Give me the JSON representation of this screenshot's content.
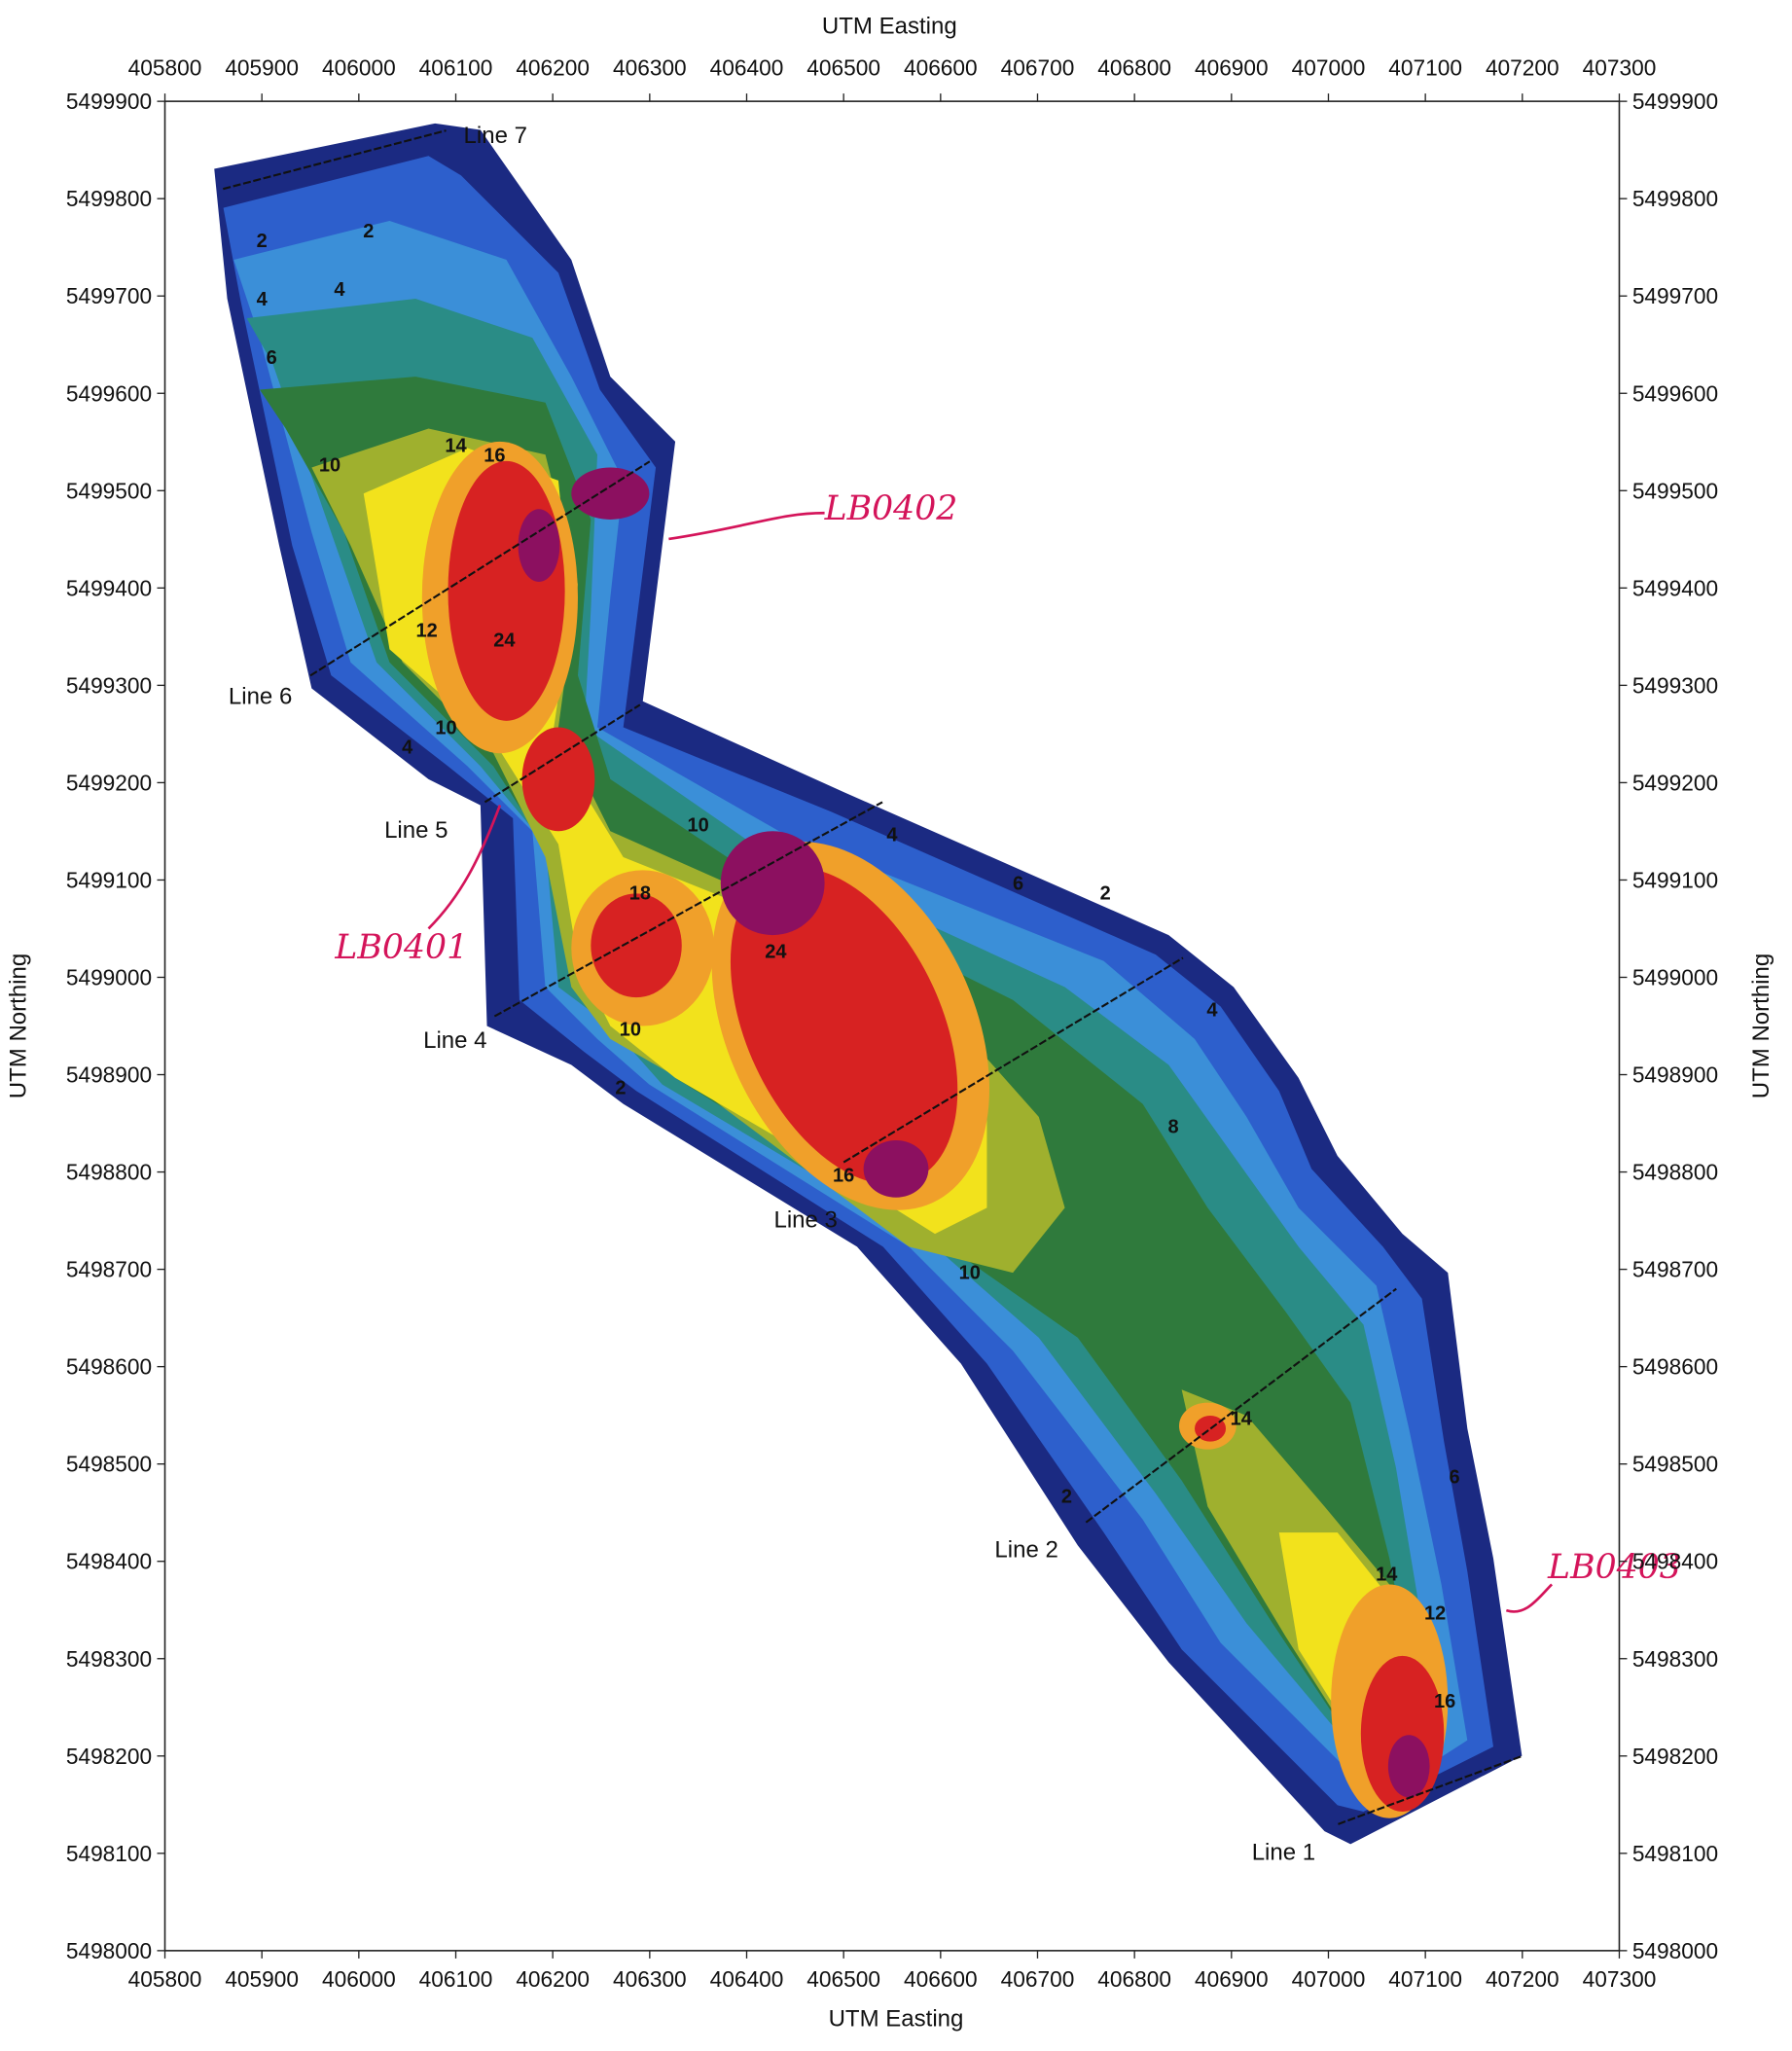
{
  "chart_data": {
    "type": "contour",
    "x_label": "UTM Easting",
    "y_label": "UTM Northing",
    "xlim": [
      405800,
      407300
    ],
    "ylim": [
      5498000,
      5499900
    ],
    "xticks": [
      405800,
      405900,
      406000,
      406100,
      406200,
      406300,
      406400,
      406500,
      406600,
      406700,
      406800,
      406900,
      407000,
      407100,
      407200,
      407300
    ],
    "yticks": [
      5498000,
      5498100,
      5498200,
      5498300,
      5498400,
      5498500,
      5498600,
      5498700,
      5498800,
      5498900,
      5499000,
      5499100,
      5499200,
      5499300,
      5499400,
      5499500,
      5499600,
      5499700,
      5499800,
      5499900
    ],
    "survey_lines": [
      {
        "name": "Line 7",
        "x": [
          405860,
          406090
        ],
        "y": [
          5499810,
          5499870
        ]
      },
      {
        "name": "Line 6",
        "x": [
          405950,
          406300
        ],
        "y": [
          5499310,
          5499530
        ]
      },
      {
        "name": "Line 5",
        "x": [
          406130,
          406290
        ],
        "y": [
          5499180,
          5499280
        ]
      },
      {
        "name": "Line 4",
        "x": [
          406140,
          406540
        ],
        "y": [
          5498960,
          5499180
        ]
      },
      {
        "name": "Line 3",
        "x": [
          406500,
          406850
        ],
        "y": [
          5498810,
          5499020
        ]
      },
      {
        "name": "Line 2",
        "x": [
          406750,
          407070
        ],
        "y": [
          5498440,
          5498680
        ]
      },
      {
        "name": "Line 1",
        "x": [
          407010,
          407200
        ],
        "y": [
          5498130,
          5498200
        ]
      }
    ],
    "contour_labels": [
      {
        "value": 2,
        "x": 405900,
        "y": 5499750
      },
      {
        "value": 2,
        "x": 406010,
        "y": 5499760
      },
      {
        "value": 4,
        "x": 405900,
        "y": 5499690
      },
      {
        "value": 4,
        "x": 405980,
        "y": 5499700
      },
      {
        "value": 6,
        "x": 405910,
        "y": 5499630
      },
      {
        "value": 10,
        "x": 405970,
        "y": 5499520
      },
      {
        "value": 14,
        "x": 406100,
        "y": 5499540
      },
      {
        "value": 16,
        "x": 406140,
        "y": 5499530
      },
      {
        "value": 12,
        "x": 406070,
        "y": 5499350
      },
      {
        "value": 24,
        "x": 406150,
        "y": 5499340
      },
      {
        "value": 10,
        "x": 406090,
        "y": 5499250
      },
      {
        "value": 4,
        "x": 406050,
        "y": 5499230
      },
      {
        "value": 18,
        "x": 406290,
        "y": 5499080
      },
      {
        "value": 10,
        "x": 406350,
        "y": 5499150
      },
      {
        "value": 24,
        "x": 406430,
        "y": 5499020
      },
      {
        "value": 10,
        "x": 406280,
        "y": 5498940
      },
      {
        "value": 10,
        "x": 406630,
        "y": 5498690
      },
      {
        "value": 8,
        "x": 406840,
        "y": 5498840
      },
      {
        "value": 14,
        "x": 406910,
        "y": 5498540
      },
      {
        "value": 14,
        "x": 407060,
        "y": 5498380
      },
      {
        "value": 12,
        "x": 407110,
        "y": 5498340
      },
      {
        "value": 16,
        "x": 407120,
        "y": 5498250
      },
      {
        "value": 6,
        "x": 407130,
        "y": 5498480
      },
      {
        "value": 2,
        "x": 406730,
        "y": 5498460
      },
      {
        "value": 2,
        "x": 406270,
        "y": 5498880
      },
      {
        "value": 2,
        "x": 406770,
        "y": 5499080
      },
      {
        "value": 4,
        "x": 406880,
        "y": 5498960
      },
      {
        "value": 6,
        "x": 406680,
        "y": 5499090
      },
      {
        "value": 4,
        "x": 406550,
        "y": 5499140
      },
      {
        "value": 16,
        "x": 406500,
        "y": 5498790
      }
    ],
    "annotations": [
      "LB0402",
      "LB0401",
      "LB0403"
    ]
  }
}
